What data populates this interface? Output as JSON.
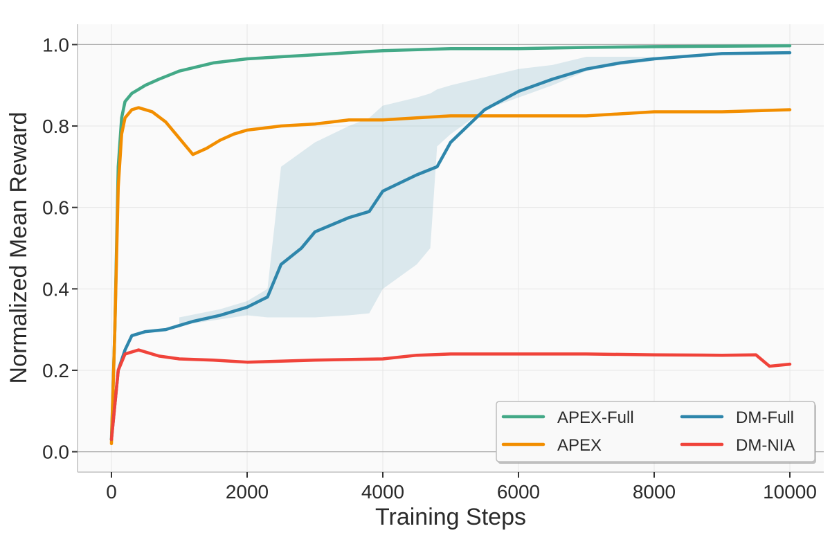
{
  "chart_data": {
    "type": "line",
    "title": "",
    "xlabel": "Training Steps",
    "ylabel": "Normalized Mean Reward",
    "xlim": [
      -500,
      10500
    ],
    "ylim": [
      -0.05,
      1.05
    ],
    "xticks": [
      0,
      2000,
      4000,
      6000,
      8000,
      10000
    ],
    "xtick_labels": [
      "0",
      "2000",
      "4000",
      "6000",
      "8000",
      "10000"
    ],
    "yticks": [
      0.0,
      0.2,
      0.4,
      0.6,
      0.8,
      1.0
    ],
    "ytick_labels": [
      "0.0",
      "0.2",
      "0.4",
      "0.6",
      "0.8",
      "1.0"
    ],
    "grid": true,
    "reference_lines_y": [
      0.0,
      1.0
    ],
    "legend_placement": "lower-right",
    "series": [
      {
        "name": "APEX-Full",
        "color": "#43a987",
        "x": [
          0,
          50,
          100,
          150,
          200,
          300,
          500,
          700,
          1000,
          1500,
          2000,
          2500,
          3000,
          3500,
          4000,
          5000,
          6000,
          7000,
          8000,
          9000,
          10000
        ],
        "y": [
          0.03,
          0.3,
          0.7,
          0.82,
          0.86,
          0.88,
          0.9,
          0.915,
          0.935,
          0.955,
          0.965,
          0.97,
          0.975,
          0.98,
          0.985,
          0.99,
          0.99,
          0.993,
          0.995,
          0.996,
          0.997
        ]
      },
      {
        "name": "APEX",
        "color": "#f28e00",
        "x": [
          0,
          50,
          100,
          150,
          200,
          300,
          400,
          600,
          800,
          1000,
          1200,
          1400,
          1600,
          1800,
          2000,
          2500,
          3000,
          3500,
          4000,
          4500,
          5000,
          6000,
          7000,
          8000,
          9000,
          10000
        ],
        "y": [
          0.02,
          0.3,
          0.65,
          0.78,
          0.82,
          0.84,
          0.845,
          0.835,
          0.81,
          0.77,
          0.73,
          0.745,
          0.765,
          0.78,
          0.79,
          0.8,
          0.805,
          0.815,
          0.815,
          0.82,
          0.825,
          0.825,
          0.825,
          0.835,
          0.835,
          0.84
        ]
      },
      {
        "name": "DM-Full",
        "color": "#2e86ab",
        "x": [
          0,
          100,
          200,
          300,
          500,
          800,
          1200,
          1600,
          2000,
          2300,
          2500,
          2800,
          3000,
          3500,
          3800,
          4000,
          4500,
          4800,
          5000,
          5500,
          6000,
          6500,
          7000,
          7500,
          8000,
          9000,
          10000
        ],
        "y": [
          0.03,
          0.2,
          0.25,
          0.285,
          0.295,
          0.3,
          0.32,
          0.335,
          0.355,
          0.38,
          0.46,
          0.5,
          0.54,
          0.575,
          0.59,
          0.64,
          0.68,
          0.7,
          0.76,
          0.84,
          0.885,
          0.915,
          0.94,
          0.955,
          0.965,
          0.978,
          0.98
        ],
        "band_x": [
          1000,
          1600,
          2000,
          2300,
          2500,
          3000,
          3500,
          3800,
          4000,
          4500,
          4700,
          4800,
          5000,
          5500,
          6000,
          6500,
          7000,
          7500,
          8000
        ],
        "band_lower": [
          0.31,
          0.325,
          0.335,
          0.33,
          0.33,
          0.33,
          0.335,
          0.34,
          0.4,
          0.46,
          0.5,
          0.75,
          0.78,
          0.84,
          0.87,
          0.9,
          0.935,
          0.95,
          0.96
        ],
        "band_upper": [
          0.33,
          0.35,
          0.37,
          0.4,
          0.7,
          0.76,
          0.8,
          0.82,
          0.85,
          0.87,
          0.88,
          0.89,
          0.9,
          0.92,
          0.94,
          0.95,
          0.97,
          0.97,
          0.97
        ]
      },
      {
        "name": "DM-NIA",
        "color": "#f0433a",
        "x": [
          0,
          100,
          200,
          400,
          700,
          1000,
          1500,
          2000,
          3000,
          4000,
          4500,
          5000,
          6000,
          7000,
          8000,
          9000,
          9500,
          9700,
          10000
        ],
        "y": [
          0.03,
          0.2,
          0.24,
          0.25,
          0.235,
          0.228,
          0.225,
          0.22,
          0.225,
          0.228,
          0.237,
          0.24,
          0.24,
          0.24,
          0.238,
          0.237,
          0.238,
          0.21,
          0.215
        ]
      }
    ]
  }
}
